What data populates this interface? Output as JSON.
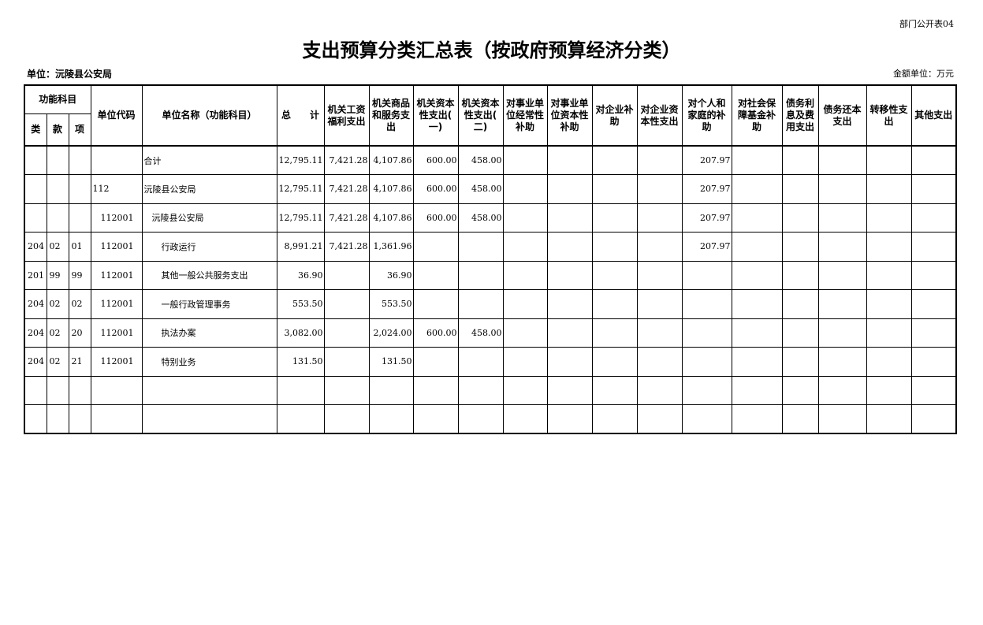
{
  "form_no": "部门公开表04",
  "title": "支出预算分类汇总表（按政府预算经济分类）",
  "unit": "单位：沅陵县公安局",
  "money_unit": "金额单位：万元",
  "header": {
    "group": "功能科目",
    "lei": "类",
    "kuan": "款",
    "xiang": "项",
    "cols": [
      "单位代码",
      "单位名称（功能科目）",
      "总　　计",
      "机关工资\n福利支出",
      "机关商品\n和服务支\n出",
      "机关资本\n性支出(\n一)",
      "机关资本\n性支出(\n二)",
      "对事业单\n位经常性\n补助",
      "对事业单\n位资本性\n补助",
      "对企业补\n助",
      "对企业资\n本性支出",
      "对个人和\n家庭的补\n助",
      "对社会保\n障基金补\n助",
      "债务利\n息及费\n用支出",
      "债务还本\n支出",
      "转移性支\n出",
      "其他支出"
    ]
  },
  "rows": [
    [
      "",
      "",
      "",
      "",
      "合计",
      "12,795.11",
      "7,421.28",
      "4,107.86",
      "600.00",
      "458.00",
      "",
      "",
      "",
      "",
      "207.97",
      "",
      "",
      "",
      "",
      "",
      ""
    ],
    [
      "",
      "",
      "",
      "112",
      "沅陵县公安局",
      "12,795.11",
      "7,421.28",
      "4,107.86",
      "600.00",
      "458.00",
      "",
      "",
      "",
      "",
      "207.97",
      "",
      "",
      "",
      "",
      "",
      ""
    ],
    [
      "",
      "",
      "",
      "112001",
      "沅陵县公安局",
      "12,795.11",
      "7,421.28",
      "4,107.86",
      "600.00",
      "458.00",
      "",
      "",
      "",
      "",
      "207.97",
      "",
      "",
      "",
      "",
      "",
      ""
    ],
    [
      "204",
      "02",
      "01",
      "112001",
      "行政运行",
      "8,991.21",
      "7,421.28",
      "1,361.96",
      "",
      "",
      "",
      "",
      "",
      "",
      "207.97",
      "",
      "",
      "",
      "",
      "",
      ""
    ],
    [
      "201",
      "99",
      "99",
      "112001",
      "其他一般公共服务支出",
      "36.90",
      "",
      "36.90",
      "",
      "",
      "",
      "",
      "",
      "",
      "",
      "",
      "",
      "",
      "",
      "",
      ""
    ],
    [
      "204",
      "02",
      "02",
      "112001",
      "一般行政管理事务",
      "553.50",
      "",
      "553.50",
      "",
      "",
      "",
      "",
      "",
      "",
      "",
      "",
      "",
      "",
      "",
      "",
      ""
    ],
    [
      "204",
      "02",
      "20",
      "112001",
      "执法办案",
      "3,082.00",
      "",
      "2,024.00",
      "600.00",
      "458.00",
      "",
      "",
      "",
      "",
      "",
      "",
      "",
      "",
      "",
      "",
      ""
    ],
    [
      "204",
      "02",
      "21",
      "112001",
      "特别业务",
      "131.50",
      "",
      "131.50",
      "",
      "",
      "",
      "",
      "",
      "",
      "",
      "",
      "",
      "",
      "",
      "",
      ""
    ],
    [
      "",
      "",
      "",
      "",
      "",
      "",
      "",
      "",
      "",
      "",
      "",
      "",
      "",
      "",
      "",
      "",
      "",
      "",
      "",
      "",
      ""
    ],
    [
      "",
      "",
      "",
      "",
      "",
      "",
      "",
      "",
      "",
      "",
      "",
      "",
      "",
      "",
      "",
      "",
      "",
      "",
      "",
      "",
      ""
    ]
  ]
}
